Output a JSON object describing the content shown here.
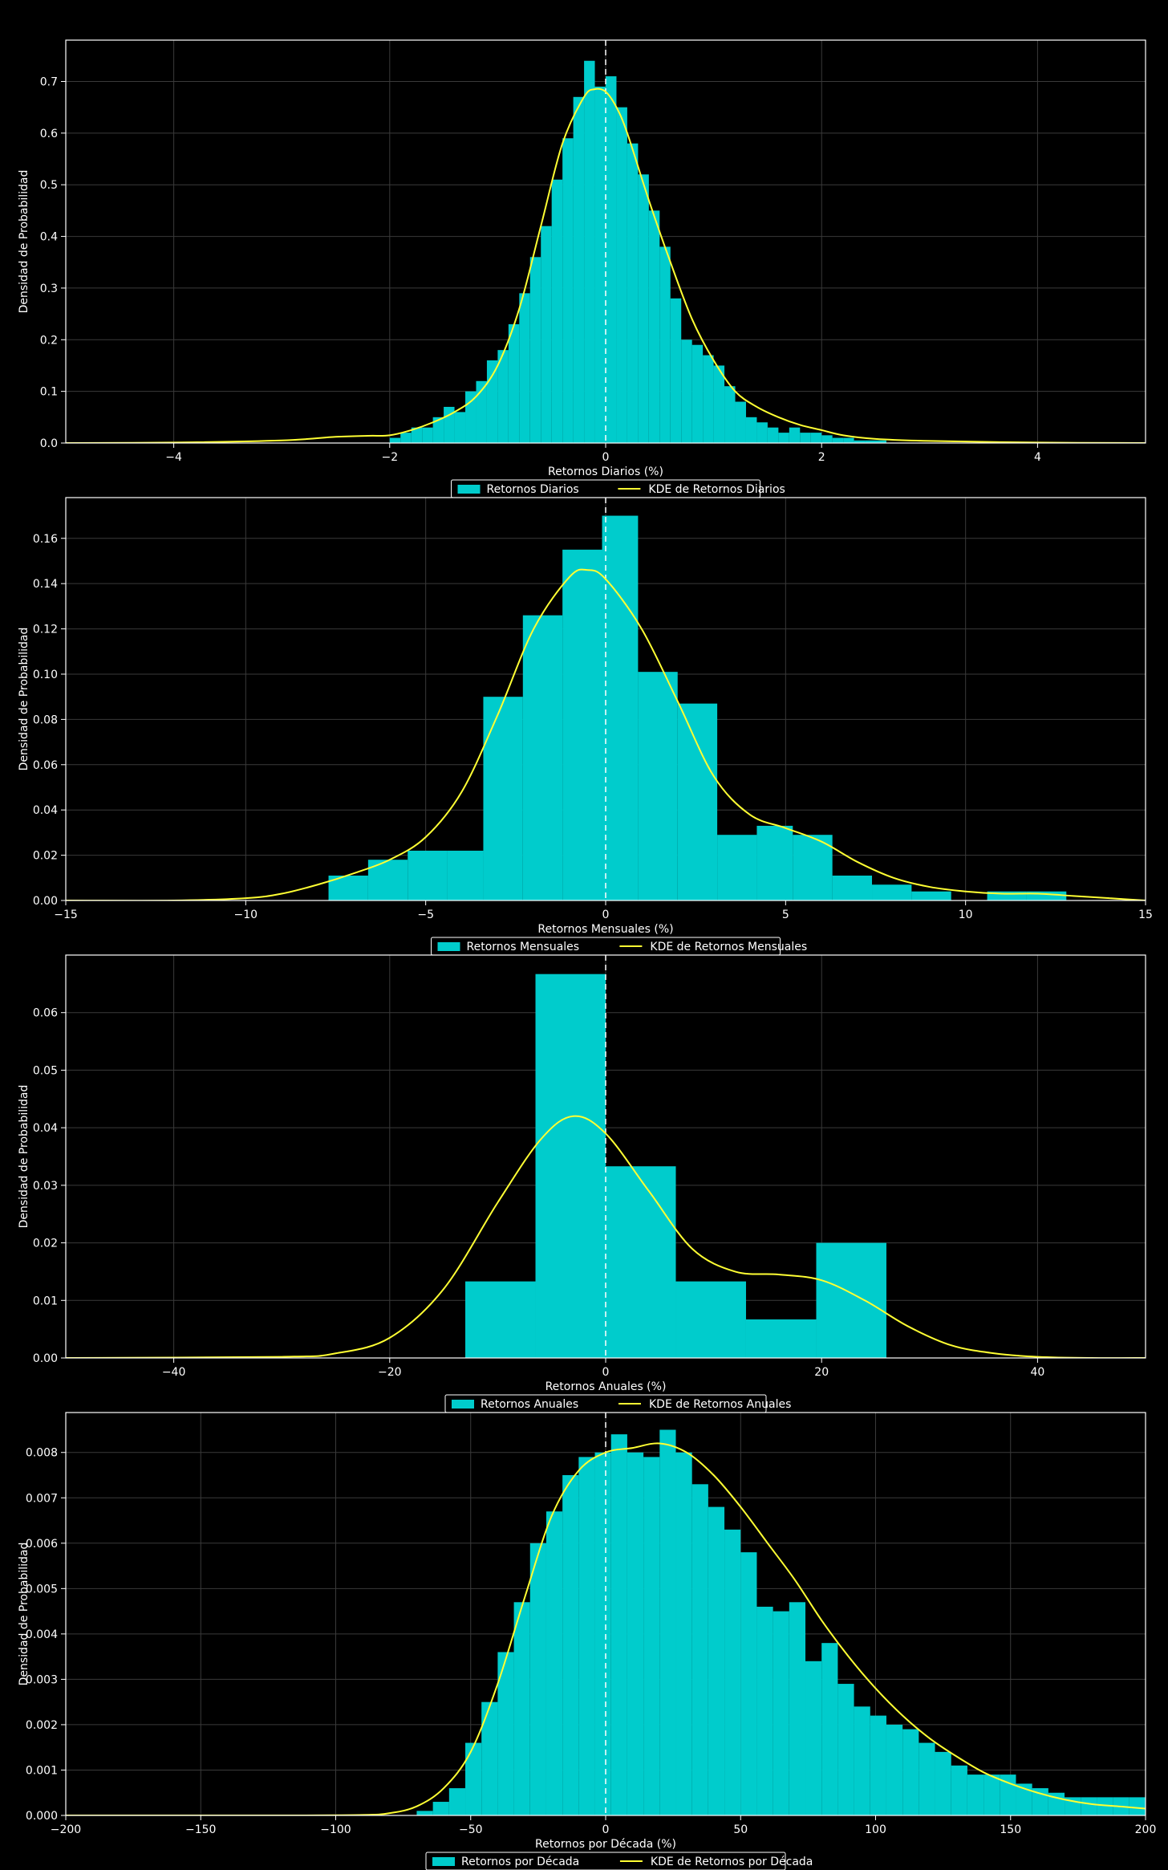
{
  "colors": {
    "background": "#000000",
    "axes": "#ffffff",
    "grid": "#3a3a3a",
    "bars": "#00cccc",
    "kde": "#ffff33",
    "zero_line": "#ffffff",
    "text": "#ffffff"
  },
  "chart_data": [
    {
      "type": "bar",
      "subtype": "histogram_with_kde",
      "xlabel": "Retornos Diarios (%)",
      "ylabel": "Densidad de Probabilidad",
      "xlim": [
        -5,
        5
      ],
      "ylim": [
        0,
        0.78
      ],
      "xticks": [
        -4,
        -2,
        0,
        2,
        4
      ],
      "yticks": [
        0.0,
        0.1,
        0.2,
        0.3,
        0.4,
        0.5,
        0.6,
        0.7
      ],
      "ytick_decimals": 1,
      "grid": true,
      "zero_line": true,
      "legend": {
        "placement": "bottom-center",
        "entries": [
          "Retornos Diarios",
          "KDE de Retornos Diarios"
        ]
      },
      "hist": {
        "bin_edges": [
          -2.0,
          -1.9,
          -1.8,
          -1.7,
          -1.6,
          -1.5,
          -1.4,
          -1.3,
          -1.2,
          -1.1,
          -1.0,
          -0.9,
          -0.8,
          -0.7,
          -0.6,
          -0.5,
          -0.4,
          -0.3,
          -0.2,
          -0.1,
          0.0,
          0.1,
          0.2,
          0.3,
          0.4,
          0.5,
          0.6,
          0.7,
          0.8,
          0.9,
          1.0,
          1.1,
          1.2,
          1.3,
          1.4,
          1.5,
          1.6,
          1.7,
          1.8,
          1.9,
          2.0,
          2.1,
          2.2,
          2.3,
          2.4,
          2.5,
          2.6
        ],
        "values": [
          0.01,
          0.02,
          0.03,
          0.03,
          0.05,
          0.07,
          0.06,
          0.1,
          0.12,
          0.16,
          0.18,
          0.23,
          0.29,
          0.36,
          0.42,
          0.51,
          0.59,
          0.67,
          0.74,
          0.69,
          0.71,
          0.65,
          0.58,
          0.52,
          0.45,
          0.38,
          0.28,
          0.2,
          0.19,
          0.17,
          0.15,
          0.11,
          0.08,
          0.05,
          0.04,
          0.03,
          0.02,
          0.03,
          0.02,
          0.02,
          0.015,
          0.01,
          0.01,
          0.005,
          0.005,
          0.005
        ]
      },
      "kde": {
        "x": [
          -5,
          -4,
          -3,
          -2.5,
          -2.2,
          -2,
          -1.8,
          -1.6,
          -1.4,
          -1.2,
          -1.0,
          -0.8,
          -0.6,
          -0.4,
          -0.2,
          -0.1,
          0.0,
          0.1,
          0.2,
          0.4,
          0.6,
          0.8,
          1.0,
          1.2,
          1.4,
          1.6,
          1.8,
          2.0,
          2.2,
          2.5,
          3.0,
          4.0,
          5.0
        ],
        "y": [
          0.0,
          0.001,
          0.005,
          0.012,
          0.014,
          0.015,
          0.025,
          0.04,
          0.06,
          0.09,
          0.15,
          0.26,
          0.42,
          0.58,
          0.67,
          0.685,
          0.68,
          0.65,
          0.6,
          0.47,
          0.35,
          0.24,
          0.16,
          0.1,
          0.07,
          0.05,
          0.035,
          0.025,
          0.015,
          0.008,
          0.004,
          0.001,
          0.0
        ]
      }
    },
    {
      "type": "bar",
      "subtype": "histogram_with_kde",
      "xlabel": "Retornos Mensuales (%)",
      "ylabel": "Densidad de Probabilidad",
      "xlim": [
        -15,
        15
      ],
      "ylim": [
        0,
        0.178
      ],
      "xticks": [
        -15,
        -10,
        -5,
        0,
        5,
        10,
        15
      ],
      "yticks": [
        0.0,
        0.02,
        0.04,
        0.06,
        0.08,
        0.1,
        0.12,
        0.14,
        0.16
      ],
      "ytick_decimals": 2,
      "grid": true,
      "zero_line": true,
      "legend": {
        "placement": "bottom-center",
        "entries": [
          "Retornos Mensuales",
          "KDE de Retornos Mensuales"
        ]
      },
      "hist": {
        "bin_edges": [
          -7.7,
          -6.6,
          -5.5,
          -4.4,
          -3.4,
          -2.3,
          -1.2,
          -0.1,
          0.9,
          2.0,
          3.1,
          4.2,
          5.2,
          6.3,
          7.4,
          8.5,
          9.6,
          10.6,
          11.7,
          12.8
        ],
        "values": [
          0.011,
          0.018,
          0.022,
          0.022,
          0.09,
          0.126,
          0.155,
          0.17,
          0.101,
          0.087,
          0.029,
          0.033,
          0.029,
          0.011,
          0.007,
          0.004,
          0.0,
          0.004,
          0.004
        ]
      },
      "kde": {
        "x": [
          -15,
          -12,
          -10,
          -9,
          -8,
          -7,
          -6,
          -5,
          -4,
          -3,
          -2,
          -1,
          -0.5,
          0,
          1,
          2,
          3,
          4,
          5,
          6,
          7,
          8,
          9,
          10,
          11,
          12,
          13,
          14,
          15
        ],
        "y": [
          0.0,
          0.0,
          0.001,
          0.003,
          0.007,
          0.012,
          0.018,
          0.028,
          0.048,
          0.082,
          0.12,
          0.143,
          0.146,
          0.142,
          0.12,
          0.088,
          0.055,
          0.038,
          0.032,
          0.026,
          0.017,
          0.01,
          0.006,
          0.004,
          0.003,
          0.003,
          0.002,
          0.001,
          0.0
        ]
      }
    },
    {
      "type": "bar",
      "subtype": "histogram_with_kde",
      "xlabel": "Retornos Anuales (%)",
      "ylabel": "Densidad de Probabilidad",
      "xlim": [
        -50,
        50
      ],
      "ylim": [
        0,
        0.07
      ],
      "xticks": [
        -40,
        -20,
        0,
        20,
        40
      ],
      "yticks": [
        0.0,
        0.01,
        0.02,
        0.03,
        0.04,
        0.05,
        0.06
      ],
      "ytick_decimals": 2,
      "grid": true,
      "zero_line": true,
      "legend": {
        "placement": "bottom-center",
        "entries": [
          "Retornos Anuales",
          "KDE de Retornos Anuales"
        ]
      },
      "hist": {
        "bin_edges": [
          -13,
          -6.5,
          0,
          6.5,
          13,
          19.5,
          26
        ],
        "values": [
          0.0133,
          0.0667,
          0.0333,
          0.0133,
          0.0067,
          0.02
        ]
      },
      "kde": {
        "x": [
          -50,
          -30,
          -25,
          -20,
          -15,
          -10,
          -6,
          -3,
          0,
          4,
          8,
          12,
          16,
          20,
          24,
          28,
          32,
          36,
          40,
          45,
          50
        ],
        "y": [
          0.0,
          0.0002,
          0.0008,
          0.0035,
          0.012,
          0.027,
          0.038,
          0.042,
          0.039,
          0.029,
          0.019,
          0.015,
          0.0145,
          0.0135,
          0.01,
          0.0055,
          0.0022,
          0.0008,
          0.0002,
          0.0,
          0.0
        ]
      }
    },
    {
      "type": "bar",
      "subtype": "histogram_with_kde",
      "xlabel": "Retornos por Década (%)",
      "ylabel": "Densidad de Probabilidad",
      "xlim": [
        -200,
        200
      ],
      "ylim": [
        0,
        0.00888
      ],
      "xticks": [
        -200,
        -150,
        -100,
        -50,
        0,
        50,
        100,
        150,
        200
      ],
      "yticks": [
        0.0,
        0.001,
        0.002,
        0.003,
        0.004,
        0.005,
        0.006,
        0.007,
        0.008
      ],
      "ytick_decimals": 3,
      "grid": true,
      "zero_line": true,
      "legend": {
        "placement": "bottom-center",
        "entries": [
          "Retornos por Década",
          "KDE de Retornos por Década"
        ]
      },
      "hist": {
        "bin_edges": [
          -70,
          -64,
          -58,
          -52,
          -46,
          -40,
          -34,
          -28,
          -22,
          -16,
          -10,
          -4,
          2,
          8,
          14,
          20,
          26,
          32,
          38,
          44,
          50,
          56,
          62,
          68,
          74,
          80,
          86,
          92,
          98,
          104,
          110,
          116,
          122,
          128,
          134,
          140,
          146,
          152,
          158,
          164,
          170,
          176,
          182,
          188,
          194,
          200
        ],
        "values": [
          0.0001,
          0.0003,
          0.0006,
          0.0016,
          0.0025,
          0.0036,
          0.0047,
          0.006,
          0.0067,
          0.0075,
          0.0079,
          0.008,
          0.0084,
          0.008,
          0.0079,
          0.0085,
          0.008,
          0.0073,
          0.0068,
          0.0063,
          0.0058,
          0.0046,
          0.0045,
          0.0047,
          0.0034,
          0.0038,
          0.0029,
          0.0024,
          0.0022,
          0.002,
          0.0019,
          0.0016,
          0.0014,
          0.0011,
          0.0009,
          0.0009,
          0.0009,
          0.0007,
          0.0006,
          0.0005,
          0.0004,
          0.0004,
          0.0004,
          0.0004,
          0.0004
        ]
      },
      "kde": {
        "x": [
          -200,
          -120,
          -90,
          -80,
          -70,
          -60,
          -50,
          -40,
          -30,
          -20,
          -10,
          0,
          10,
          20,
          30,
          40,
          50,
          60,
          70,
          80,
          90,
          100,
          110,
          120,
          130,
          140,
          150,
          160,
          170,
          180,
          190,
          200
        ],
        "y": [
          0.0,
          0.0,
          1e-05,
          5e-05,
          0.0002,
          0.0006,
          0.0014,
          0.0029,
          0.0048,
          0.0066,
          0.0076,
          0.008,
          0.0081,
          0.0082,
          0.008,
          0.0075,
          0.0068,
          0.006,
          0.0052,
          0.0043,
          0.0035,
          0.0028,
          0.0022,
          0.0017,
          0.0013,
          0.00095,
          0.0007,
          0.0005,
          0.00035,
          0.00025,
          0.0002,
          0.00015
        ]
      }
    }
  ]
}
